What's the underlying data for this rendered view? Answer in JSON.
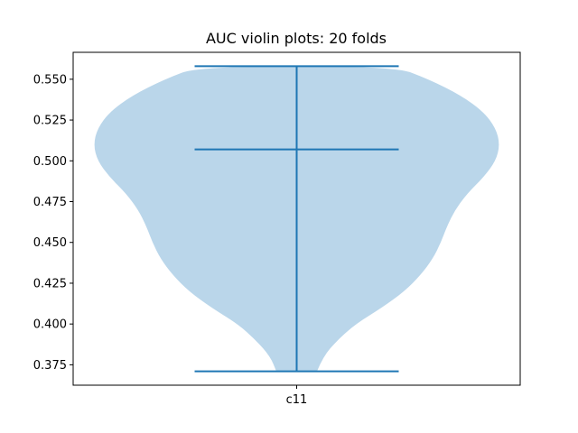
{
  "chart_data": {
    "type": "violin",
    "title": "AUC violin plots: 20 folds",
    "xlabel": "",
    "ylabel": "",
    "categories": [
      "c11"
    ],
    "ylim": [
      0.3625,
      0.5665
    ],
    "yticks": [
      0.375,
      0.4,
      0.425,
      0.45,
      0.475,
      0.5,
      0.525,
      0.55
    ],
    "ytick_labels": [
      "0.375",
      "0.400",
      "0.425",
      "0.450",
      "0.475",
      "0.500",
      "0.525",
      "0.550"
    ],
    "grid": false,
    "violins": [
      {
        "category": "c11",
        "min": 0.371,
        "max": 0.558,
        "median": 0.507,
        "density_profile": [
          [
            0.371,
            0.1
          ],
          [
            0.38,
            0.13
          ],
          [
            0.39,
            0.2
          ],
          [
            0.4,
            0.29
          ],
          [
            0.41,
            0.42
          ],
          [
            0.42,
            0.53
          ],
          [
            0.43,
            0.61
          ],
          [
            0.44,
            0.67
          ],
          [
            0.45,
            0.71
          ],
          [
            0.46,
            0.74
          ],
          [
            0.47,
            0.78
          ],
          [
            0.48,
            0.84
          ],
          [
            0.49,
            0.92
          ],
          [
            0.5,
            0.98
          ],
          [
            0.51,
            1.0
          ],
          [
            0.52,
            0.98
          ],
          [
            0.53,
            0.92
          ],
          [
            0.54,
            0.81
          ],
          [
            0.55,
            0.65
          ],
          [
            0.558,
            0.48
          ]
        ]
      }
    ],
    "colors": {
      "violin_fill": "#bad6ea",
      "line": "#1f77b4",
      "axes": "#000000"
    }
  }
}
